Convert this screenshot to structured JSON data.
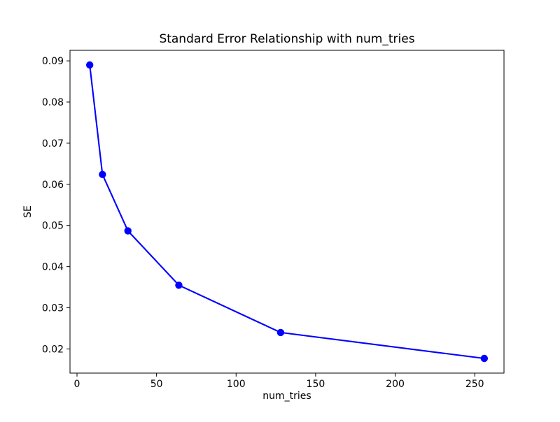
{
  "figure": {
    "background": "#ffffff",
    "text_color": "#000000",
    "spine_color": "#000000"
  },
  "chart_data": {
    "type": "line",
    "title": "Standard Error Relationship with num_tries",
    "xlabel": "num_tries",
    "ylabel": "SE",
    "series": [
      {
        "name": "SE",
        "x": [
          8,
          16,
          32,
          64,
          128,
          256
        ],
        "y": [
          0.089,
          0.0624,
          0.0487,
          0.0355,
          0.024,
          0.0177
        ],
        "color": "#0000ff",
        "marker": "circle",
        "line_width": 2.1,
        "marker_radius": 5.2
      }
    ],
    "xlim": [
      -4.4,
      268.4
    ],
    "ylim": [
      0.014135,
      0.092565
    ],
    "xticks": [
      0,
      50,
      100,
      150,
      200,
      250
    ],
    "yticks": [
      0.02,
      0.03,
      0.04,
      0.05,
      0.06,
      0.07,
      0.08,
      0.09
    ],
    "ytick_decimals": 2,
    "grid": false,
    "legend": false
  }
}
